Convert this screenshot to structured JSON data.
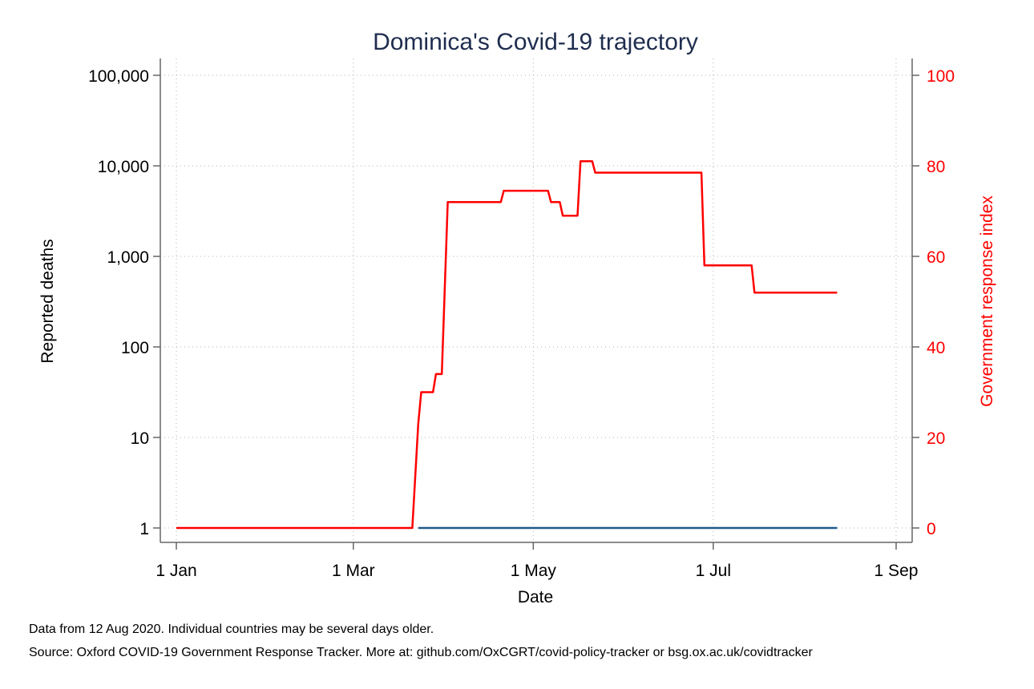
{
  "chart_data": {
    "type": "line",
    "title": "Dominica's Covid-19 trajectory",
    "xlabel": "Date",
    "ylabel": "Reported deaths",
    "y2label": "Government response index",
    "x_ticks": [
      "2020-01-01",
      "2020-03-01",
      "2020-05-01",
      "2020-07-01",
      "2020-09-01"
    ],
    "x_tick_labels": [
      "1 Jan",
      "1 Mar",
      "1 May",
      "1 Jul",
      "1 Sep"
    ],
    "xlim": [
      "2020-01-01",
      "2020-09-01"
    ],
    "y_scale": "log",
    "ylim": [
      1,
      100000
    ],
    "y_ticks": [
      1,
      10,
      100,
      1000,
      10000,
      100000
    ],
    "y_tick_labels": [
      "1",
      "10",
      "100",
      "1,000",
      "10,000",
      "100,000"
    ],
    "y2lim": [
      0,
      100
    ],
    "y2_ticks": [
      0,
      20,
      40,
      60,
      80,
      100
    ],
    "y2_tick_labels": [
      "0",
      "20",
      "40",
      "60",
      "80",
      "100"
    ],
    "grid": true,
    "series": [
      {
        "axis": "right",
        "color": "#ff0000",
        "points": [
          [
            "2020-01-01",
            0
          ],
          [
            "2020-03-21",
            0
          ],
          [
            "2020-03-23",
            23
          ],
          [
            "2020-03-24",
            30
          ],
          [
            "2020-03-28",
            30
          ],
          [
            "2020-03-29",
            34
          ],
          [
            "2020-03-31",
            34
          ],
          [
            "2020-04-02",
            72
          ],
          [
            "2020-04-20",
            72
          ],
          [
            "2020-04-21",
            74.5
          ],
          [
            "2020-05-06",
            74.5
          ],
          [
            "2020-05-07",
            72
          ],
          [
            "2020-05-10",
            72
          ],
          [
            "2020-05-11",
            69
          ],
          [
            "2020-05-16",
            69
          ],
          [
            "2020-05-17",
            81
          ],
          [
            "2020-05-21",
            81
          ],
          [
            "2020-05-22",
            78.5
          ],
          [
            "2020-06-27",
            78.5
          ],
          [
            "2020-06-28",
            58
          ],
          [
            "2020-07-14",
            58
          ],
          [
            "2020-07-15",
            52
          ],
          [
            "2020-08-12",
            52
          ]
        ]
      },
      {
        "axis": "left",
        "color": "#1f5a8c",
        "points": [
          [
            "2020-03-23",
            1
          ],
          [
            "2020-08-12",
            1
          ]
        ]
      }
    ]
  },
  "notes": {
    "line1": "Data from 12 Aug 2020. Individual countries may be several days older.",
    "line2": "Source: Oxford COVID-19 Government Response Tracker. More at: github.com/OxCGRT/covid-policy-tracker or bsg.ox.ac.uk/covidtracker"
  }
}
